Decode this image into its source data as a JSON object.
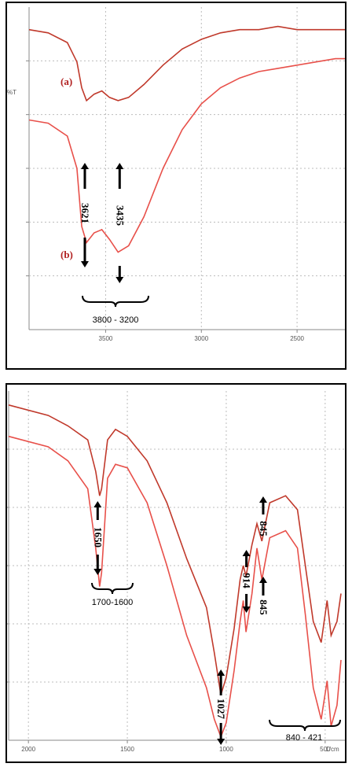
{
  "colors": {
    "spectrum": "#e8504a",
    "spectrum_dark": "#c0392b",
    "sample_label": "#b22222",
    "grid": "#bcbcbc"
  },
  "chart_data": [
    {
      "type": "line",
      "title": "",
      "xlabel": "",
      "ylabel": "",
      "y_axis_label_fragment": "%T",
      "xlim": [
        3900,
        2250
      ],
      "x_ticks": [
        "3500",
        "3000",
        "2500"
      ],
      "x_tick_values": [
        3500,
        3000,
        2500
      ],
      "sample_labels": [
        "(a)",
        "(b)"
      ],
      "series": [
        {
          "name": "(a)",
          "x": [
            3900,
            3800,
            3700,
            3650,
            3625,
            3600,
            3560,
            3520,
            3480,
            3435,
            3380,
            3300,
            3200,
            3100,
            3000,
            2900,
            2800,
            2700,
            2600,
            2500,
            2400,
            2300,
            2250
          ],
          "y": [
            0.93,
            0.92,
            0.89,
            0.83,
            0.75,
            0.71,
            0.73,
            0.74,
            0.72,
            0.71,
            0.72,
            0.76,
            0.82,
            0.87,
            0.9,
            0.92,
            0.93,
            0.93,
            0.94,
            0.93,
            0.93,
            0.93,
            0.93
          ]
        },
        {
          "name": "(b)",
          "x": [
            3900,
            3800,
            3700,
            3650,
            3625,
            3600,
            3560,
            3520,
            3480,
            3435,
            3380,
            3300,
            3200,
            3100,
            3000,
            2900,
            2800,
            2700,
            2600,
            2500,
            2400,
            2300,
            2250
          ],
          "y": [
            0.65,
            0.64,
            0.6,
            0.5,
            0.32,
            0.27,
            0.3,
            0.31,
            0.28,
            0.24,
            0.26,
            0.35,
            0.5,
            0.62,
            0.7,
            0.75,
            0.78,
            0.8,
            0.81,
            0.82,
            0.83,
            0.84,
            0.84
          ]
        }
      ],
      "annotations": [
        {
          "text": "3621",
          "x": 3621
        },
        {
          "text": "3435",
          "x": 3435
        }
      ],
      "range_label": "3800 - 3200"
    },
    {
      "type": "line",
      "title": "",
      "xlabel": "",
      "ylabel": "",
      "x_unit_label": "1/cm",
      "xlim": [
        2100,
        400
      ],
      "x_ticks": [
        "2000",
        "1500",
        "1000",
        "500"
      ],
      "x_tick_values": [
        2000,
        1500,
        1000,
        500
      ],
      "series": [
        {
          "name": "(a)",
          "x": [
            2100,
            1900,
            1800,
            1700,
            1660,
            1640,
            1630,
            1600,
            1560,
            1500,
            1400,
            1300,
            1200,
            1100,
            1060,
            1027,
            1000,
            960,
            930,
            914,
            900,
            870,
            845,
            820,
            780,
            700,
            640,
            600,
            560,
            520,
            490,
            470,
            440,
            420
          ],
          "y": [
            0.96,
            0.93,
            0.9,
            0.86,
            0.77,
            0.7,
            0.72,
            0.86,
            0.89,
            0.87,
            0.8,
            0.68,
            0.52,
            0.38,
            0.25,
            0.13,
            0.18,
            0.32,
            0.46,
            0.5,
            0.47,
            0.56,
            0.62,
            0.57,
            0.68,
            0.7,
            0.66,
            0.5,
            0.34,
            0.28,
            0.4,
            0.3,
            0.34,
            0.42
          ]
        },
        {
          "name": "(b)",
          "x": [
            2100,
            1900,
            1800,
            1700,
            1660,
            1640,
            1630,
            1600,
            1560,
            1500,
            1400,
            1300,
            1200,
            1100,
            1060,
            1027,
            1000,
            960,
            930,
            914,
            900,
            870,
            845,
            820,
            780,
            700,
            640,
            600,
            560,
            520,
            490,
            470,
            440,
            420
          ],
          "y": [
            0.87,
            0.84,
            0.8,
            0.72,
            0.55,
            0.44,
            0.48,
            0.75,
            0.79,
            0.78,
            0.68,
            0.5,
            0.3,
            0.15,
            0.06,
            0.01,
            0.05,
            0.2,
            0.34,
            0.4,
            0.31,
            0.42,
            0.55,
            0.46,
            0.58,
            0.6,
            0.55,
            0.36,
            0.15,
            0.06,
            0.17,
            0.04,
            0.1,
            0.23
          ]
        }
      ],
      "annotations": [
        {
          "text": "1650",
          "x": 1650
        },
        {
          "text": "1027",
          "x": 1027
        },
        {
          "text": "914",
          "x": 914
        },
        {
          "text": "845",
          "x": 845
        },
        {
          "text": "845",
          "x": 845
        }
      ],
      "range_labels": [
        "1700-1600",
        "840 - 421"
      ]
    }
  ]
}
